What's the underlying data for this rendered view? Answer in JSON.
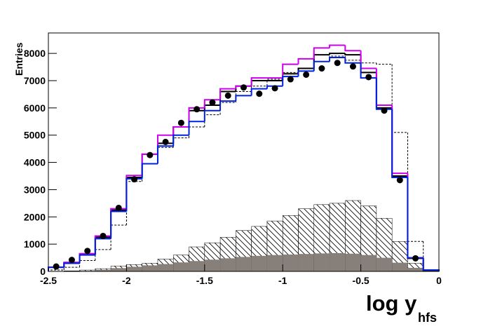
{
  "chart_data": {
    "type": "histogram",
    "ylabel": "Entries",
    "xlabel": "log y",
    "xlabel_sub": "hfs",
    "bins": [
      -2.5,
      -2.4,
      -2.3,
      -2.2,
      -2.1,
      -2.0,
      -1.9,
      -1.8,
      -1.7,
      -1.6,
      -1.5,
      -1.4,
      -1.3,
      -1.2,
      -1.1,
      -1.0,
      -0.9,
      -0.8,
      -0.7,
      -0.6,
      -0.5,
      -0.4,
      -0.3,
      -0.2,
      -0.1,
      0.0
    ],
    "xlim": [
      -2.5,
      0
    ],
    "xticks": [
      -2.5,
      -2,
      -1.5,
      -1,
      -0.5,
      0
    ],
    "ylim": [
      0,
      8750
    ],
    "yticks": [
      0,
      1000,
      2000,
      3000,
      4000,
      5000,
      6000,
      7000,
      8000
    ],
    "series": [
      {
        "style": "hatched",
        "color": "#000000",
        "values": [
          0,
          20,
          50,
          100,
          200,
          250,
          300,
          450,
          600,
          900,
          1050,
          1250,
          1500,
          1650,
          1850,
          2050,
          2300,
          2450,
          2500,
          2600,
          2400,
          1950,
          1100,
          300,
          30
        ]
      },
      {
        "style": "filled",
        "color": "#877f79",
        "values": [
          0,
          10,
          20,
          60,
          120,
          170,
          220,
          270,
          330,
          380,
          430,
          480,
          530,
          570,
          600,
          620,
          640,
          660,
          670,
          650,
          600,
          500,
          320,
          130,
          20
        ]
      },
      {
        "style": "dashed",
        "color": "#000000",
        "values": [
          50,
          150,
          400,
          800,
          1700,
          3300,
          4300,
          4550,
          4900,
          5300,
          5750,
          6200,
          6600,
          6800,
          7050,
          7300,
          7450,
          7700,
          7900,
          7750,
          7650,
          7600,
          5100,
          1100,
          50
        ]
      },
      {
        "style": "line",
        "color": "#000000",
        "values": [
          150,
          300,
          620,
          1250,
          2250,
          3450,
          4300,
          4700,
          5300,
          5900,
          6100,
          6600,
          6800,
          7000,
          7000,
          7250,
          7450,
          7950,
          8000,
          7950,
          7300,
          6000,
          3500,
          480,
          30
        ]
      },
      {
        "style": "line",
        "color": "#cc00ee",
        "values": [
          150,
          330,
          650,
          1300,
          2300,
          3520,
          4300,
          5000,
          5300,
          6000,
          6300,
          6700,
          6800,
          7100,
          7100,
          7600,
          7800,
          8200,
          8300,
          8100,
          7450,
          6100,
          3600,
          500,
          50
        ]
      },
      {
        "style": "line",
        "color": "#0022dd",
        "values": [
          150,
          300,
          600,
          1200,
          2200,
          3400,
          3950,
          4600,
          5000,
          5500,
          5900,
          6250,
          6450,
          6700,
          6800,
          7150,
          7350,
          7700,
          7850,
          7650,
          7100,
          5950,
          3450,
          500,
          50
        ]
      },
      {
        "style": "points",
        "color": "#000000",
        "values": [
          180,
          420,
          750,
          1300,
          2330,
          3380,
          4270,
          4750,
          5450,
          5950,
          6200,
          6450,
          6750,
          6520,
          6720,
          7050,
          7220,
          7450,
          7650,
          7520,
          7130,
          5900,
          3350,
          480,
          null
        ]
      }
    ]
  }
}
